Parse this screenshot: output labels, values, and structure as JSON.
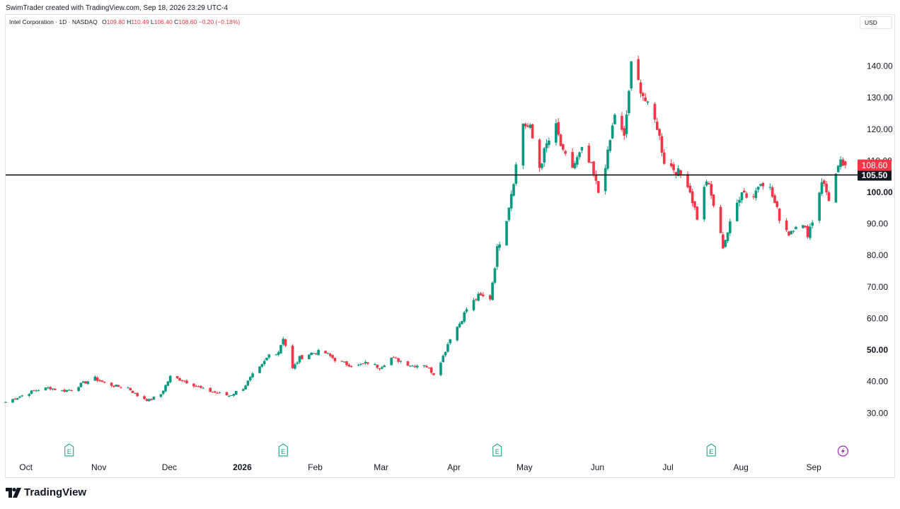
{
  "header": {
    "credit": "SwimTrader created with TradingView.com, Sep 18, 2026 23:29 UTC-4",
    "symbol": "Intel Corporation · 1D · NASDAQ",
    "open_label": "O",
    "open": "109.80",
    "high_label": "H",
    "high": "110.49",
    "low_label": "L",
    "low": "106.40",
    "close_label": "C",
    "close": "108.60",
    "change": "−0.20 (−0.18%)"
  },
  "currency": "USD",
  "brand": "TradingView",
  "colors": {
    "up": "#089981",
    "down": "#f23645",
    "line": "#000000",
    "accent": "#9c27b0"
  },
  "chart_data": {
    "type": "candlestick",
    "y_ticks": [
      30,
      40,
      50,
      60,
      70,
      80,
      90,
      100,
      110,
      120,
      130,
      140
    ],
    "y_tick_labels": [
      "30.00",
      "40.00",
      "50.00",
      "60.00",
      "70.00",
      "80.00",
      "90.00",
      "100.00",
      "110.00",
      "120.00",
      "130.00",
      "140.00"
    ],
    "y_bold_ticks": [
      50,
      100
    ],
    "ylim": [
      22,
      152
    ],
    "x_range": [
      "2025-09-26",
      "2026-09-22"
    ],
    "x_labels": [
      {
        "date": "2025-10-01",
        "label": "Oct",
        "bold": false
      },
      {
        "date": "2025-11-01",
        "label": "Nov",
        "bold": false
      },
      {
        "date": "2025-12-01",
        "label": "Dec",
        "bold": false
      },
      {
        "date": "2026-01-01",
        "label": "2026",
        "bold": true
      },
      {
        "date": "2026-02-01",
        "label": "Feb",
        "bold": false
      },
      {
        "date": "2026-03-01",
        "label": "Mar",
        "bold": false
      },
      {
        "date": "2026-04-01",
        "label": "Apr",
        "bold": false
      },
      {
        "date": "2026-05-01",
        "label": "May",
        "bold": false
      },
      {
        "date": "2026-06-01",
        "label": "Jun",
        "bold": false
      },
      {
        "date": "2026-07-01",
        "label": "Jul",
        "bold": false
      },
      {
        "date": "2026-08-01",
        "label": "Aug",
        "bold": false
      },
      {
        "date": "2026-09-01",
        "label": "Sep",
        "bold": false
      }
    ],
    "horizontal_line": {
      "value": 105.5,
      "label": "105.50"
    },
    "last_price": {
      "value": 108.6,
      "label": "108.60"
    },
    "earnings_markers": [
      {
        "date": "2025-10-23",
        "label": "E"
      },
      {
        "date": "2026-01-22",
        "label": "E"
      },
      {
        "date": "2026-04-23",
        "label": "E"
      },
      {
        "date": "2026-07-23",
        "label": "E"
      }
    ],
    "dividend_marker": {
      "date": "2026-09-17"
    },
    "closes": [
      {
        "date": "2025-09-26",
        "c": 33.5
      },
      {
        "date": "2025-10-01",
        "c": 35.0
      },
      {
        "date": "2025-10-06",
        "c": 36.5
      },
      {
        "date": "2025-10-10",
        "c": 37.5
      },
      {
        "date": "2025-10-15",
        "c": 38.0
      },
      {
        "date": "2025-10-20",
        "c": 37.0
      },
      {
        "date": "2025-10-24",
        "c": 37.5
      },
      {
        "date": "2025-10-29",
        "c": 39.5
      },
      {
        "date": "2025-11-03",
        "c": 41.0
      },
      {
        "date": "2025-11-07",
        "c": 39.5
      },
      {
        "date": "2025-11-12",
        "c": 38.5
      },
      {
        "date": "2025-11-17",
        "c": 38.0
      },
      {
        "date": "2025-11-21",
        "c": 35.5
      },
      {
        "date": "2025-11-26",
        "c": 34.0
      },
      {
        "date": "2025-12-01",
        "c": 36.0
      },
      {
        "date": "2025-12-05",
        "c": 41.5
      },
      {
        "date": "2025-12-10",
        "c": 40.5
      },
      {
        "date": "2025-12-15",
        "c": 39.0
      },
      {
        "date": "2025-12-19",
        "c": 37.5
      },
      {
        "date": "2025-12-24",
        "c": 36.5
      },
      {
        "date": "2025-12-30",
        "c": 35.5
      },
      {
        "date": "2026-01-05",
        "c": 38.0
      },
      {
        "date": "2026-01-09",
        "c": 42.0
      },
      {
        "date": "2026-01-13",
        "c": 45.0
      },
      {
        "date": "2026-01-16",
        "c": 48.5
      },
      {
        "date": "2026-01-20",
        "c": 49.5
      },
      {
        "date": "2026-01-22",
        "c": 54.0
      },
      {
        "date": "2026-01-26",
        "c": 44.0
      },
      {
        "date": "2026-01-29",
        "c": 47.5
      },
      {
        "date": "2026-02-03",
        "c": 49.0
      },
      {
        "date": "2026-02-08",
        "c": 49.5
      },
      {
        "date": "2026-02-13",
        "c": 47.0
      },
      {
        "date": "2026-02-18",
        "c": 45.5
      },
      {
        "date": "2026-02-23",
        "c": 45.0
      },
      {
        "date": "2026-02-27",
        "c": 46.0
      },
      {
        "date": "2026-03-04",
        "c": 44.5
      },
      {
        "date": "2026-03-09",
        "c": 47.5
      },
      {
        "date": "2026-03-13",
        "c": 46.5
      },
      {
        "date": "2026-03-18",
        "c": 45.0
      },
      {
        "date": "2026-03-23",
        "c": 45.5
      },
      {
        "date": "2026-03-27",
        "c": 42.5
      },
      {
        "date": "2026-03-31",
        "c": 48.0
      },
      {
        "date": "2026-04-03",
        "c": 54.0
      },
      {
        "date": "2026-04-07",
        "c": 58.5
      },
      {
        "date": "2026-04-10",
        "c": 63.0
      },
      {
        "date": "2026-04-15",
        "c": 67.0
      },
      {
        "date": "2026-04-20",
        "c": 66.5
      },
      {
        "date": "2026-04-23",
        "c": 82.0
      },
      {
        "date": "2026-04-27",
        "c": 92.0
      },
      {
        "date": "2026-04-30",
        "c": 104.0
      },
      {
        "date": "2026-05-04",
        "c": 122.0
      },
      {
        "date": "2026-05-07",
        "c": 120.0
      },
      {
        "date": "2026-05-11",
        "c": 108.0
      },
      {
        "date": "2026-05-14",
        "c": 115.0
      },
      {
        "date": "2026-05-18",
        "c": 120.5
      },
      {
        "date": "2026-05-21",
        "c": 112.0
      },
      {
        "date": "2026-05-25",
        "c": 108.0
      },
      {
        "date": "2026-05-29",
        "c": 113.0
      },
      {
        "date": "2026-06-02",
        "c": 108.0
      },
      {
        "date": "2026-06-05",
        "c": 100.0
      },
      {
        "date": "2026-06-09",
        "c": 112.0
      },
      {
        "date": "2026-06-12",
        "c": 125.0
      },
      {
        "date": "2026-06-16",
        "c": 117.0
      },
      {
        "date": "2026-06-19",
        "c": 140.0
      },
      {
        "date": "2026-06-23",
        "c": 133.0
      },
      {
        "date": "2026-06-26",
        "c": 127.0
      },
      {
        "date": "2026-06-30",
        "c": 121.0
      },
      {
        "date": "2026-07-03",
        "c": 110.0
      },
      {
        "date": "2026-07-08",
        "c": 107.0
      },
      {
        "date": "2026-07-13",
        "c": 103.0
      },
      {
        "date": "2026-07-17",
        "c": 92.0
      },
      {
        "date": "2026-07-21",
        "c": 104.0
      },
      {
        "date": "2026-07-24",
        "c": 96.0
      },
      {
        "date": "2026-07-28",
        "c": 83.0
      },
      {
        "date": "2026-08-01",
        "c": 92.0
      },
      {
        "date": "2026-08-05",
        "c": 101.0
      },
      {
        "date": "2026-08-09",
        "c": 97.0
      },
      {
        "date": "2026-08-13",
        "c": 104.0
      },
      {
        "date": "2026-08-17",
        "c": 101.0
      },
      {
        "date": "2026-08-21",
        "c": 92.0
      },
      {
        "date": "2026-08-25",
        "c": 87.0
      },
      {
        "date": "2026-08-29",
        "c": 91.0
      },
      {
        "date": "2026-09-02",
        "c": 87.0
      },
      {
        "date": "2026-09-05",
        "c": 93.0
      },
      {
        "date": "2026-09-08",
        "c": 104.0
      },
      {
        "date": "2026-09-11",
        "c": 98.0
      },
      {
        "date": "2026-09-14",
        "c": 105.5
      },
      {
        "date": "2026-09-16",
        "c": 109.0
      },
      {
        "date": "2026-09-18",
        "c": 108.6
      }
    ]
  }
}
